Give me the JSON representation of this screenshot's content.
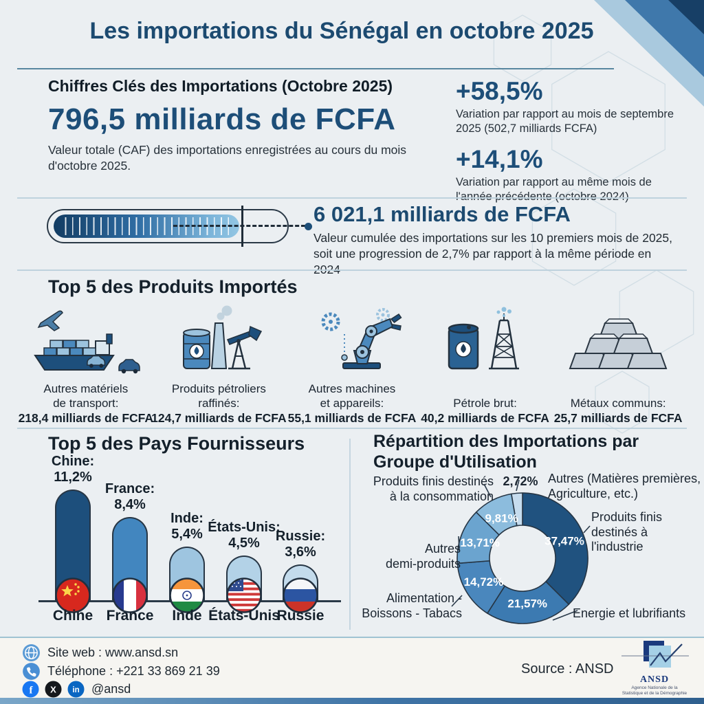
{
  "title": "Les importations du Sénégal en octobre 2025",
  "colors": {
    "accent": "#1d4e78",
    "title": "#1c4a70",
    "heading": "#14202b",
    "outline": "#273645",
    "divider": "#bed2dd"
  },
  "key_figures": {
    "heading": "Chiffres Clés des Importations (Octobre 2025)",
    "main_value": "796,5 milliards de FCFA",
    "main_desc": "Valeur totale (CAF) des importations enregistrées au cours du mois d'octobre 2025.",
    "variation_mom": {
      "value": "+58,5%",
      "desc": "Variation par rapport au mois de septembre 2025 (502,7 milliards FCFA)"
    },
    "variation_yoy": {
      "value": "+14,1%",
      "desc": "Variation par rapport au même mois de l'année précédente (octobre 2024)"
    }
  },
  "cumulative": {
    "value": "6 021,1 milliards de FCFA",
    "desc": "Valeur cumulée des importations sur les 10 premiers mois de 2025,\nsoit une progression de 2,7% par rapport à la même période en 2024",
    "progress_percent": 80
  },
  "top_products": {
    "heading": "Top 5 des Produits Importés",
    "items": [
      {
        "icon": "cargo-ship-icon",
        "label": "Autres matériels\nde transport:",
        "value": "218,4 milliards de FCFA"
      },
      {
        "icon": "oil-refinery-icon",
        "label": "Produits pétroliers\nraffinés:",
        "value": "124,7 milliards de FCFA"
      },
      {
        "icon": "robot-arm-icon",
        "label": "Autres machines\net appareils:",
        "value": "55,1 milliards de FCFA"
      },
      {
        "icon": "oil-derrick-icon",
        "label": "Pétrole brut:",
        "value": "40,2 milliards de FCFA"
      },
      {
        "icon": "metal-ingots-icon",
        "label": "Métaux communs:",
        "value": "25,7 milliards de FCFA"
      }
    ]
  },
  "top_countries": {
    "heading": "Top 5 des Pays Fournisseurs"
  },
  "usage_distribution": {
    "heading": "Répartition des Importations par Groupe d'Utilisation",
    "callouts": {
      "consommation": "Produits finis destinés\nà la consommation",
      "small_pct": "2,72%",
      "autres": "Autres (Matières premières,\nAgriculture, etc.)",
      "industrie": "Produits finis\ndestinés à\nl'industrie",
      "demi_produits": "Autres\ndemi-produits",
      "alimentation": "Alimentation -\nBoissons - Tabacs",
      "energie": "Energie et lubrifiants"
    }
  },
  "footer": {
    "website_label": "Site web : www.ansd.sn",
    "phone_label": "Téléphone : +221 33 869 21 39",
    "social_handle": "@ansd",
    "source": "Source : ANSD",
    "logo_name": "ANSD",
    "logo_tagline": "Agence Nationale de la\nStatistique et de la Démographie"
  },
  "chart_data": [
    {
      "type": "bar",
      "title": "Top 5 des Pays Fournisseurs",
      "categories": [
        "Chine",
        "France",
        "Inde",
        "États-Unis",
        "Russie"
      ],
      "values": [
        11.2,
        8.4,
        5.4,
        4.5,
        3.6
      ],
      "value_labels": [
        "11,2%",
        "8,4%",
        "5,4%",
        "4,5%",
        "3,6%"
      ],
      "bar_colors": [
        "#1d4f7c",
        "#4286bf",
        "#9ec5e0",
        "#b3d2e7",
        "#c3dbec"
      ],
      "flags": [
        "cn",
        "fr",
        "in",
        "us",
        "ru"
      ],
      "xlabel": "",
      "ylabel": "",
      "ylim": [
        0,
        12
      ],
      "grid": false
    },
    {
      "type": "donut",
      "title": "Répartition des Importations par Groupe d'Utilisation",
      "start_angle_deg": 0,
      "direction": "clockwise",
      "segments": [
        {
          "label": "Produits finis destinés à l'industrie",
          "value": 37.47,
          "display": "37,47%",
          "color": "#20527f"
        },
        {
          "label": "Energie et lubrifiants",
          "value": 21.57,
          "display": "21,57%",
          "color": "#3c7ab1"
        },
        {
          "label": "Alimentation - Boissons - Tabacs",
          "value": 14.72,
          "display": "14,72%",
          "color": "#4a87bd"
        },
        {
          "label": "Autres demi-produits",
          "value": 13.71,
          "display": "13,71%",
          "color": "#6ba4cf"
        },
        {
          "label": "Produits finis destinés à la consommation",
          "value": 9.81,
          "display": "9,81%",
          "color": "#8cbcdd"
        },
        {
          "label": "Autres (Matières premières, Agriculture, etc.)",
          "value": 2.72,
          "display": "2,72%",
          "color": "#c6dcee"
        }
      ]
    }
  ]
}
